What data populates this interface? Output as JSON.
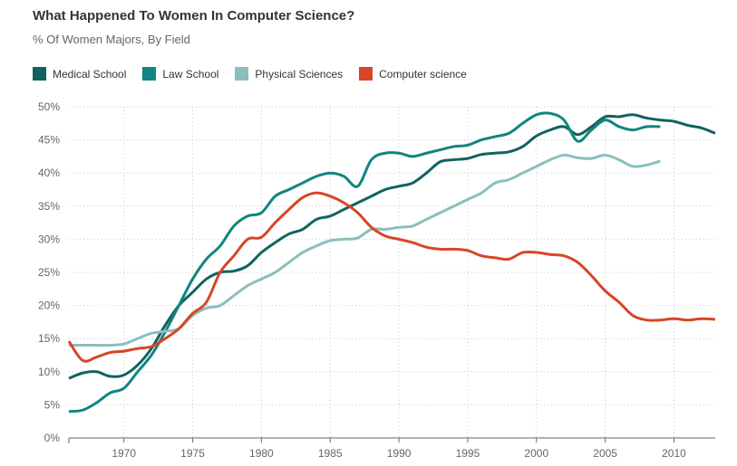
{
  "chart_data": {
    "type": "line",
    "title": "What Happened To Women In Computer Science?",
    "subtitle": "% Of Women Majors, By Field",
    "xlim": [
      1966,
      2013
    ],
    "ylim": [
      0,
      50
    ],
    "x_ticks": [
      1970,
      1975,
      1980,
      1985,
      1990,
      1995,
      2000,
      2005,
      2010
    ],
    "y_ticks": [
      "0%",
      "5%",
      "10%",
      "15%",
      "20%",
      "25%",
      "30%",
      "35%",
      "40%",
      "45%",
      "50%"
    ],
    "grid": true,
    "legend_position": "top-left",
    "series": [
      {
        "name": "Medical School",
        "color": "#11635e",
        "start": 1966,
        "values": [
          9,
          9.8,
          10,
          9.3,
          9.5,
          11,
          13.5,
          17,
          20,
          22,
          24,
          25,
          25.2,
          26,
          28,
          29.5,
          30.8,
          31.5,
          33,
          33.5,
          34.5,
          35.5,
          36.5,
          37.5,
          38,
          38.5,
          40,
          41.7,
          42,
          42.2,
          42.8,
          43,
          43.2,
          44,
          45.6,
          46.5,
          47,
          45.8,
          47,
          48.5,
          48.5,
          48.8,
          48.3,
          48,
          47.8,
          47.2,
          46.8,
          46
        ]
      },
      {
        "name": "Law School",
        "color": "#11857f",
        "start": 1966,
        "values": [
          4,
          4.2,
          5.3,
          6.8,
          7.5,
          10,
          12.5,
          16,
          20,
          24,
          27,
          29,
          32,
          33.5,
          34,
          36.5,
          37.5,
          38.5,
          39.5,
          40,
          39.5,
          38,
          42,
          43,
          43,
          42.5,
          43,
          43.5,
          44,
          44.2,
          45,
          45.5,
          46,
          47.5,
          48.8,
          49,
          48,
          44.8,
          46.5,
          48,
          47,
          46.5,
          47,
          47
        ]
      },
      {
        "name": "Physical Sciences",
        "color": "#8bbfbd",
        "start": 1966,
        "values": [
          14,
          14,
          14,
          14,
          14.2,
          15,
          15.8,
          16.1,
          16.5,
          18.5,
          19.6,
          20,
          21.5,
          23,
          24,
          25,
          26.5,
          28,
          29,
          29.8,
          30,
          30.2,
          31.5,
          31.5,
          31.8,
          32,
          33,
          34,
          35,
          36,
          37,
          38.5,
          39,
          40,
          41,
          42,
          42.7,
          42.3,
          42.2,
          42.7,
          42,
          41,
          41.2,
          41.8
        ]
      },
      {
        "name": "Computer science",
        "color": "#d84527",
        "start": 1966,
        "values": [
          14.6,
          11.7,
          12.2,
          12.9,
          13.1,
          13.5,
          13.8,
          15,
          16.5,
          18.8,
          20.5,
          25,
          27.5,
          30,
          30.3,
          32.5,
          34.5,
          36.3,
          37,
          36.5,
          35.5,
          34,
          31.8,
          30.5,
          30,
          29.5,
          28.8,
          28.5,
          28.5,
          28.3,
          27.5,
          27.2,
          27,
          28,
          28,
          27.7,
          27.5,
          26.5,
          24.5,
          22.2,
          20.5,
          18.5,
          17.8,
          17.8,
          18,
          17.8,
          18,
          17.9
        ]
      }
    ]
  }
}
